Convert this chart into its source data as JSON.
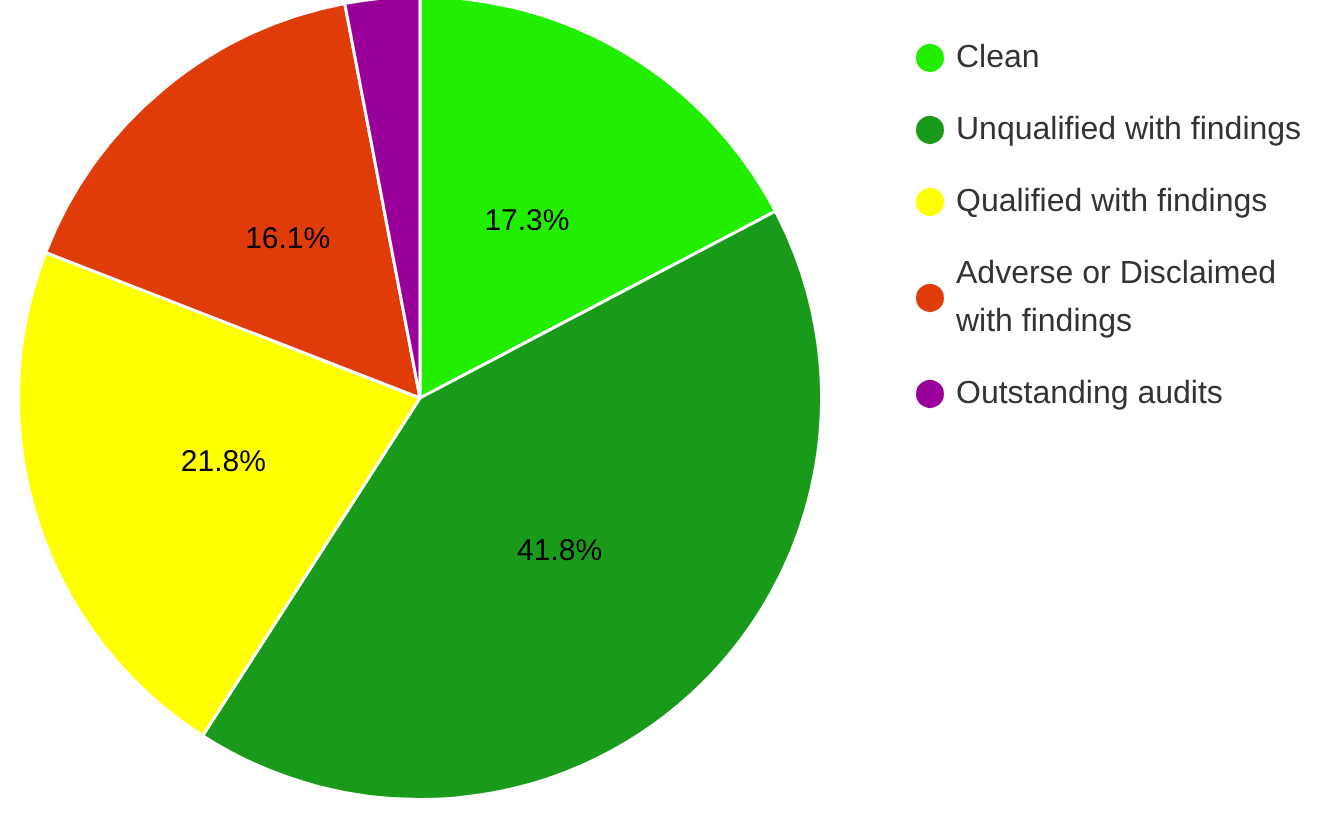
{
  "chart_data": {
    "type": "pie",
    "categories": [
      "Clean",
      "Unqualified with findings",
      "Qualified with findings",
      "Adverse or Disclaimed with findings",
      "Outstanding audits"
    ],
    "values": [
      17.3,
      41.8,
      21.8,
      16.1,
      3.0
    ],
    "colors": [
      "#22ee00",
      "#1a9a1a",
      "#ffff00",
      "#e03c0a",
      "#990099"
    ],
    "value_labels": [
      "17.3%",
      "41.8%",
      "21.8%",
      "16.1%",
      null
    ],
    "legend": "right"
  }
}
